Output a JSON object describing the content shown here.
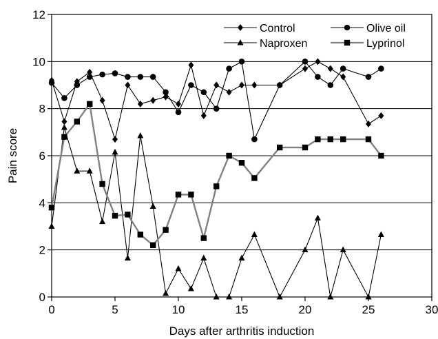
{
  "chart_data": {
    "type": "line",
    "title": "",
    "xlabel": "Days after arthritis induction",
    "ylabel": "Pain score",
    "xlim": [
      0,
      30
    ],
    "ylim": [
      0,
      12
    ],
    "x_ticks": [
      "0",
      "5",
      "10",
      "15",
      "20",
      "25",
      "30"
    ],
    "y_ticks": [
      "0",
      "2",
      "4",
      "6",
      "8",
      "10",
      "12"
    ],
    "grid": "horizontal",
    "legend_position": "top-right",
    "series": [
      {
        "name": "Control",
        "marker": "diamond",
        "color": "#000000",
        "x": [
          0,
          1,
          2,
          3,
          4,
          5,
          6,
          7,
          8,
          9,
          10,
          11,
          12,
          13,
          14,
          15,
          16,
          18,
          20,
          21,
          22,
          23,
          25,
          26
        ],
        "values": [
          9.2,
          7.45,
          9.15,
          9.55,
          8.35,
          6.7,
          9.0,
          8.2,
          8.35,
          8.5,
          8.2,
          9.85,
          7.7,
          9.0,
          8.7,
          9.0,
          9.0,
          9.0,
          9.7,
          10.0,
          9.7,
          9.35,
          7.35,
          7.7
        ]
      },
      {
        "name": "Olive oil",
        "marker": "circle",
        "color": "#000000",
        "x": [
          0,
          1,
          2,
          3,
          4,
          5,
          6,
          7,
          8,
          9,
          10,
          11,
          12,
          13,
          14,
          15,
          16,
          18,
          20,
          21,
          22,
          23,
          25,
          26
        ],
        "values": [
          9.1,
          8.45,
          9.0,
          9.35,
          9.45,
          9.5,
          9.35,
          9.35,
          9.35,
          8.7,
          7.85,
          9.0,
          8.7,
          8.0,
          9.7,
          10.0,
          6.7,
          9.0,
          10.0,
          9.35,
          9.0,
          9.7,
          9.35,
          9.7
        ]
      },
      {
        "name": "Naproxen",
        "marker": "triangle",
        "color": "#000000",
        "x": [
          0,
          1,
          2,
          3,
          4,
          5,
          6,
          7,
          8,
          9,
          10,
          11,
          12,
          13,
          14,
          15,
          16,
          18,
          20,
          21,
          22,
          23,
          25,
          26
        ],
        "values": [
          3.0,
          7.2,
          5.35,
          5.35,
          3.2,
          6.15,
          1.65,
          6.85,
          3.85,
          0.15,
          1.2,
          0.35,
          1.65,
          0.0,
          0.0,
          1.65,
          2.65,
          0.0,
          2.0,
          3.35,
          0.0,
          2.0,
          0.0,
          2.65
        ]
      },
      {
        "name": "Lyprinol",
        "marker": "square",
        "color": "#808080",
        "x": [
          0,
          1,
          2,
          3,
          4,
          5,
          6,
          7,
          8,
          9,
          10,
          11,
          12,
          13,
          14,
          15,
          16,
          18,
          20,
          21,
          22,
          23,
          25,
          26
        ],
        "values": [
          3.8,
          6.8,
          7.45,
          8.2,
          4.8,
          3.45,
          3.5,
          2.65,
          2.2,
          2.85,
          4.35,
          4.35,
          2.5,
          4.7,
          6.0,
          5.7,
          5.05,
          6.35,
          6.35,
          6.7,
          6.7,
          6.7,
          6.7,
          6.0
        ]
      }
    ]
  }
}
